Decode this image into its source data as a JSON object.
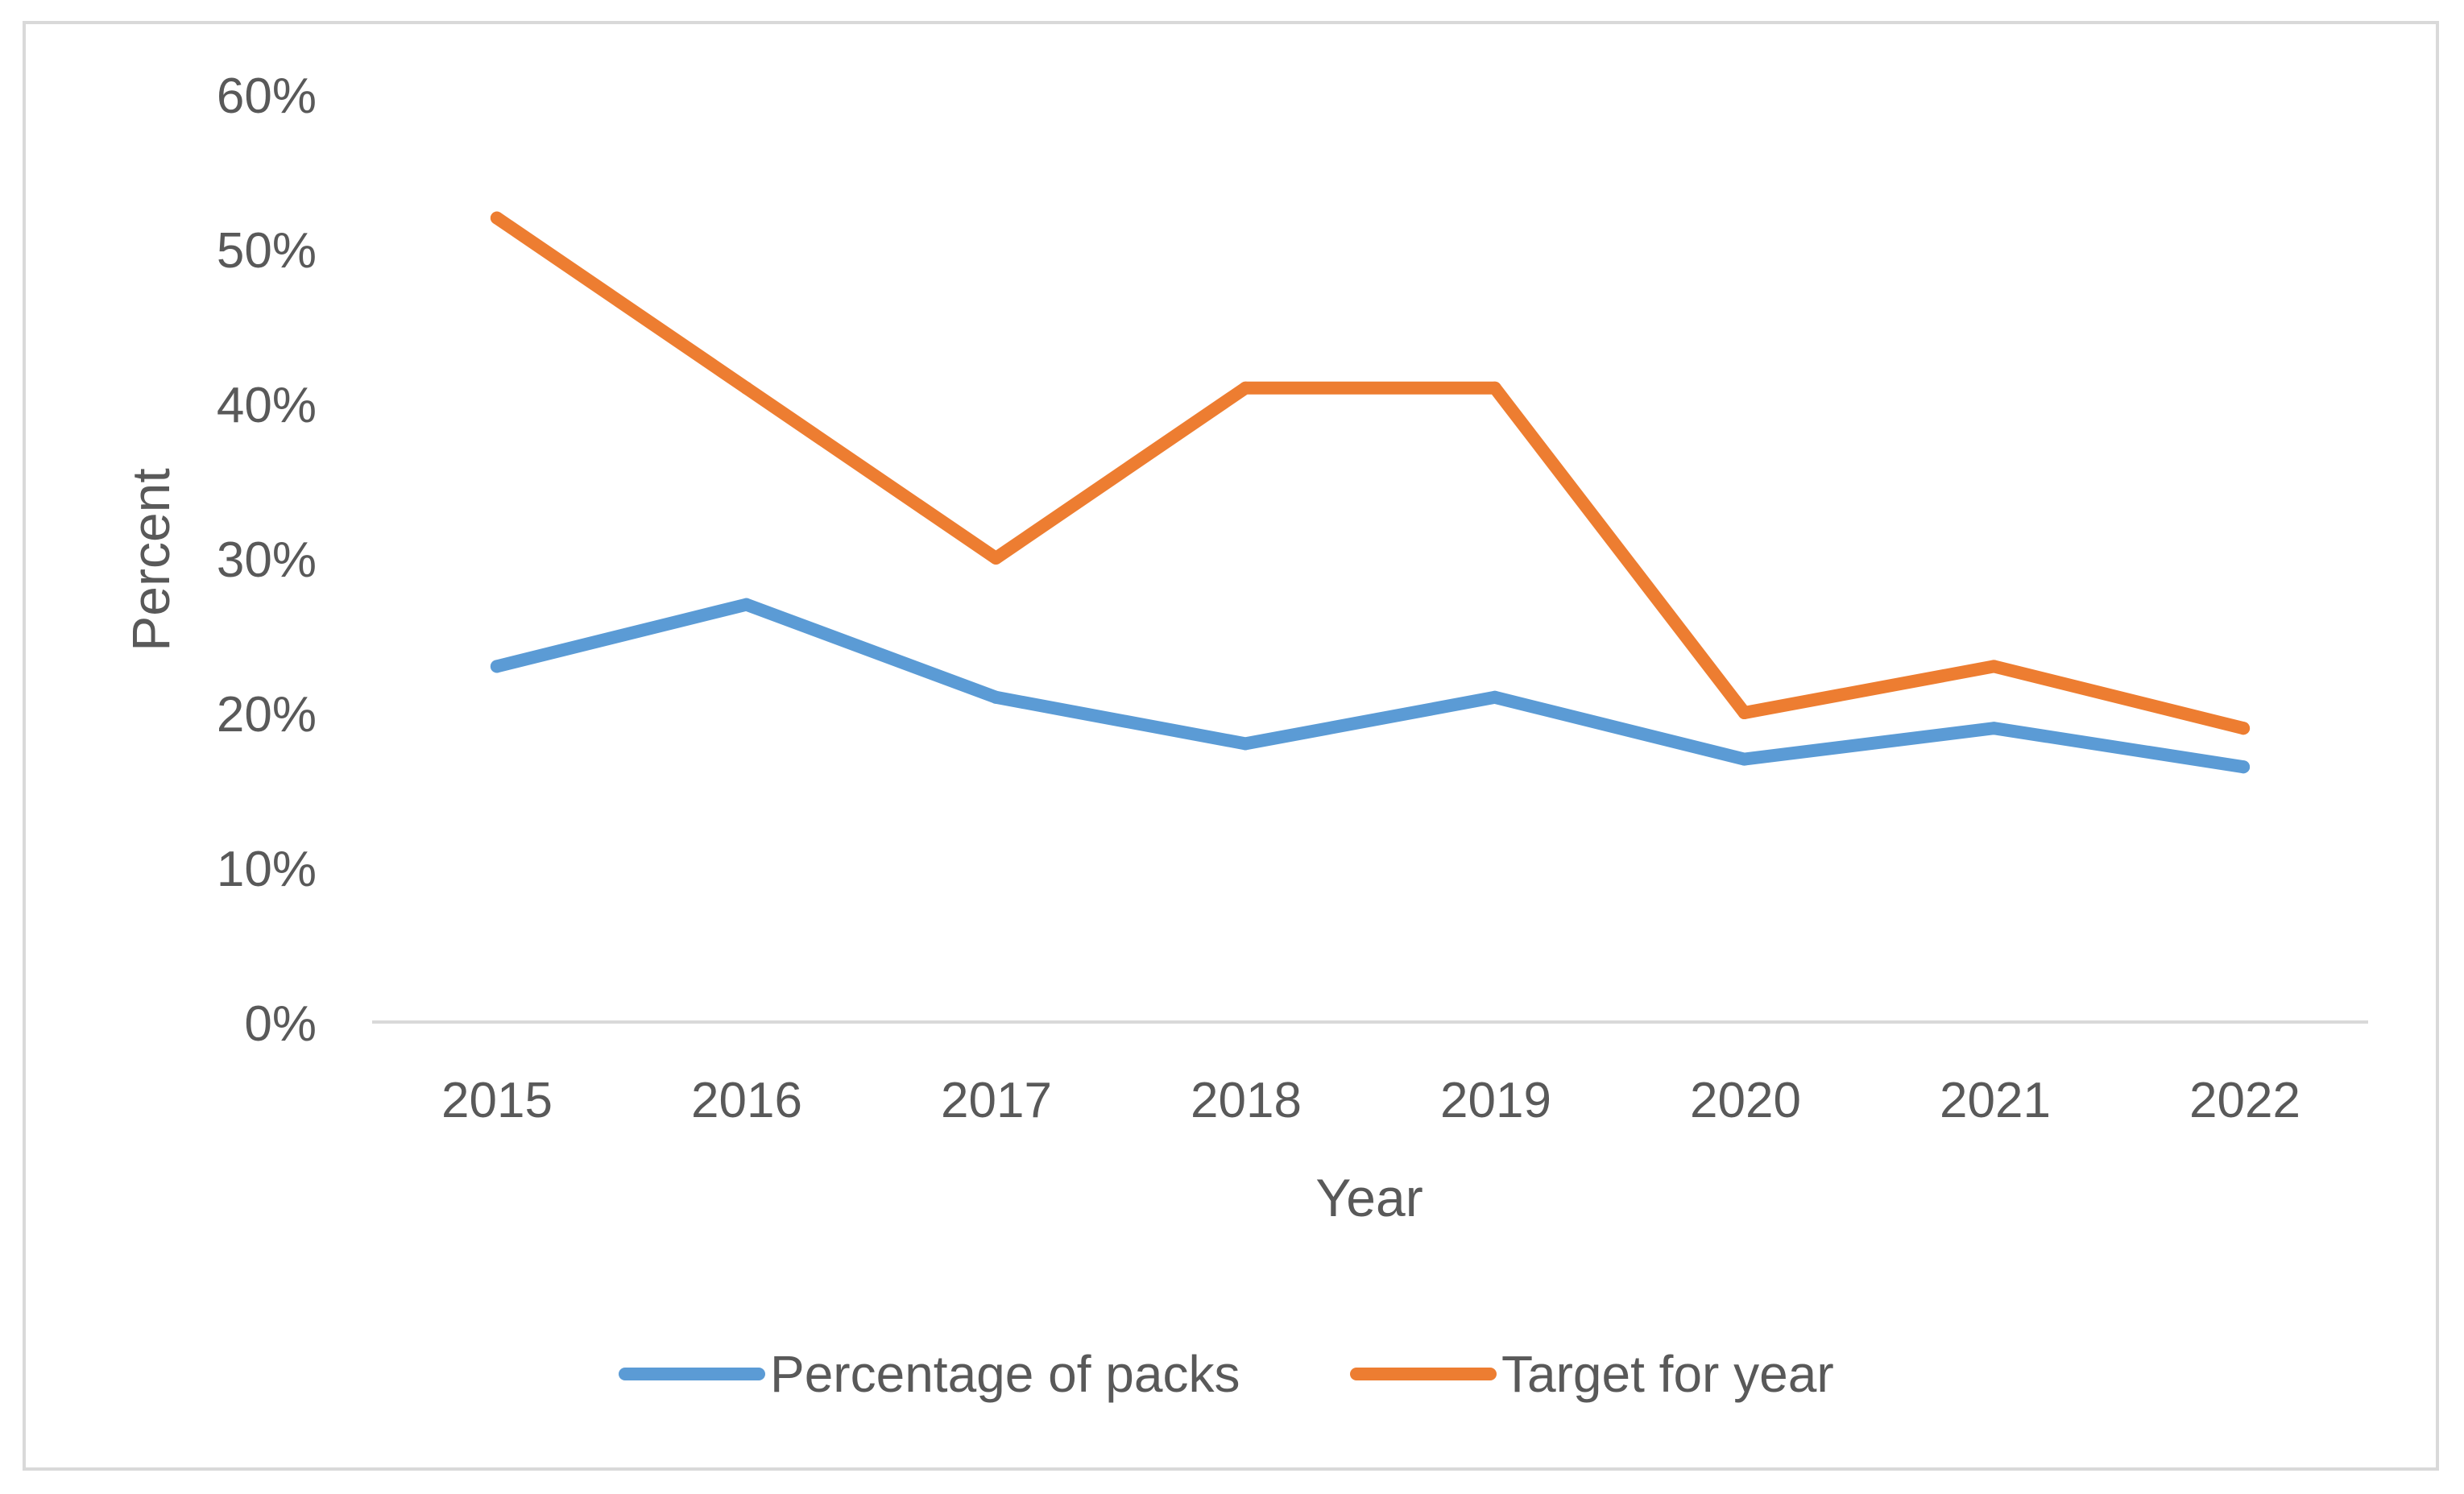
{
  "chart_data": {
    "type": "line",
    "title": "",
    "xlabel": "Year",
    "ylabel": "Percent",
    "categories": [
      "2015",
      "2016",
      "2017",
      "2018",
      "2019",
      "2020",
      "2021",
      "2022"
    ],
    "yticks": [
      "0%",
      "10%",
      "20%",
      "30%",
      "40%",
      "50%",
      "60%"
    ],
    "ylim": [
      0,
      60
    ],
    "grid": false,
    "legend_position": "bottom",
    "series": [
      {
        "name": "Percentage of packs",
        "color": "#5b9bd5",
        "values": [
          23,
          27,
          21,
          18,
          21,
          17,
          19,
          16.5
        ]
      },
      {
        "name": "Target for year",
        "color": "#ed7d31",
        "values": [
          52,
          41,
          30,
          41,
          41,
          20,
          23,
          19
        ]
      }
    ]
  }
}
